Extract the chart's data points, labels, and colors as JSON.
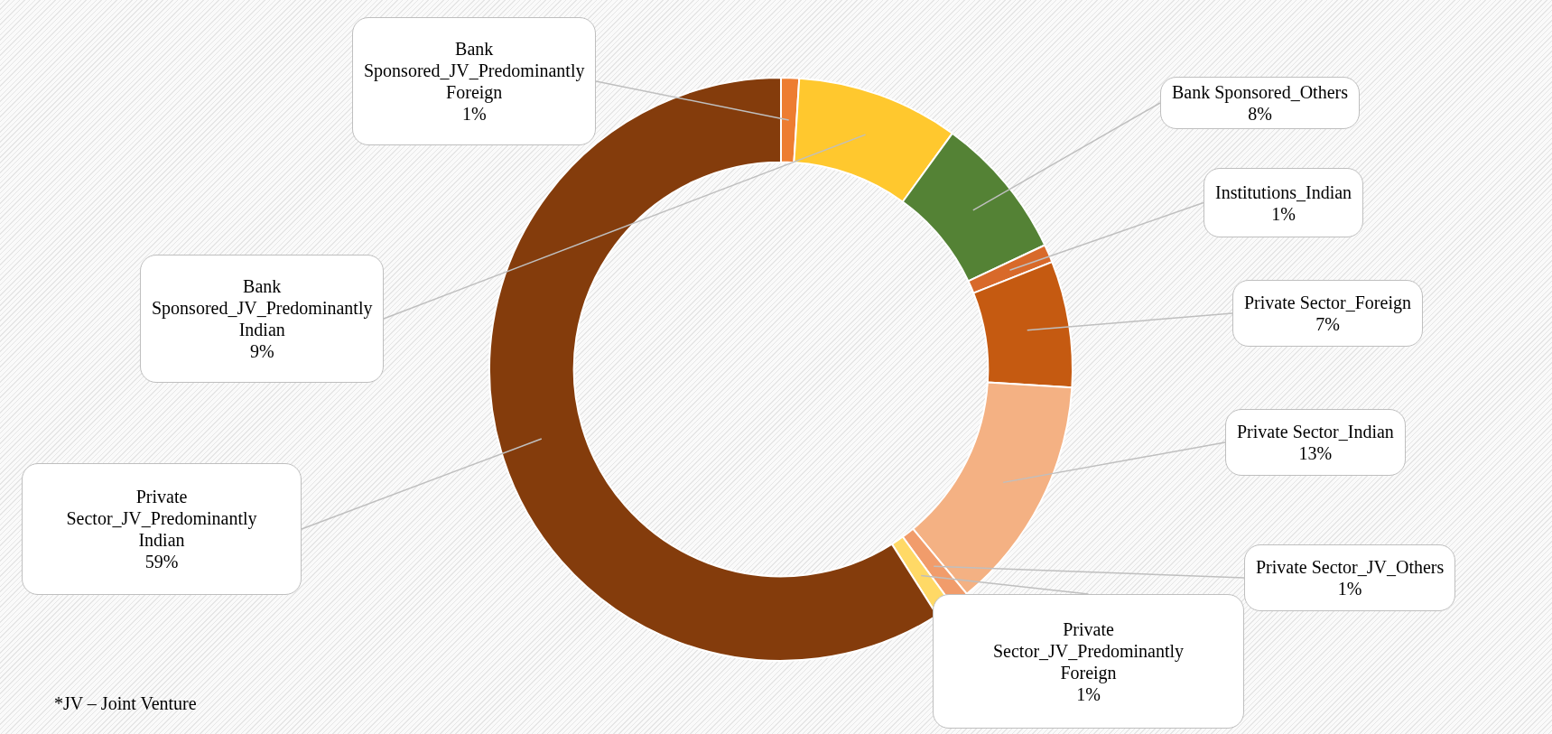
{
  "chart_data": {
    "type": "donut",
    "categories": [
      "Bank Sponsored_JV_Predominantly Foreign",
      "Bank Sponsored_JV_Predominantly Indian",
      "Bank Sponsored_Others",
      "Institutions_Indian",
      "Private Sector_Foreign",
      "Private Sector_Indian",
      "Private Sector_JV_Others",
      "Private Sector_JV_Predominantly Foreign",
      "Private Sector_JV_Predominantly Indian"
    ],
    "values": [
      1,
      9,
      8,
      1,
      7,
      13,
      1,
      1,
      59
    ],
    "value_labels": [
      "1%",
      "9%",
      "8%",
      "1%",
      "7%",
      "13%",
      "1%",
      "1%",
      "59%"
    ],
    "colors": [
      "#ed7d31",
      "#ffc82e",
      "#548235",
      "#d8692a",
      "#c55a11",
      "#f4b183",
      "#f19c6b",
      "#ffd966",
      "#843c0c"
    ],
    "legend": false,
    "annotations": [
      "*JV – Joint Venture"
    ]
  }
}
